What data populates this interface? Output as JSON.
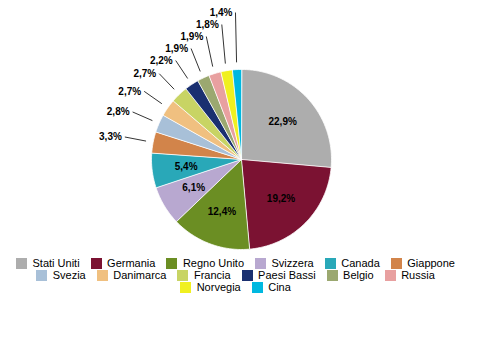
{
  "chart_data": {
    "type": "pie",
    "categories": [
      "Stati Uniti",
      "Germania",
      "Regno Unito",
      "Svizzera",
      "Canada",
      "Giappone",
      "Svezia",
      "Danimarca",
      "Francia",
      "Paesi Bassi",
      "Belgio",
      "Russia",
      "Norvegia",
      "Cina"
    ],
    "values": [
      22.9,
      19.2,
      12.4,
      6.1,
      5.4,
      3.3,
      2.8,
      2.7,
      2.7,
      2.2,
      1.9,
      1.9,
      1.8,
      1.4
    ],
    "value_labels": [
      "22,9%",
      "19,2%",
      "12,4%",
      "6,1%",
      "5,4%",
      "3,3%",
      "2,8%",
      "2,7%",
      "2,7%",
      "2,2%",
      "1,9%",
      "1,9%",
      "1,8%",
      "1,4%"
    ],
    "colors": [
      "#ADADAD",
      "#7B1232",
      "#6B8E23",
      "#B8A8D0",
      "#29A8B8",
      "#D2844A",
      "#A8C0D8",
      "#F0C080",
      "#C8D464",
      "#1A3070",
      "#9BA870",
      "#E8A0A0",
      "#F0F020",
      "#00B8E0"
    ],
    "data_labels": true,
    "legend": "bottom"
  }
}
